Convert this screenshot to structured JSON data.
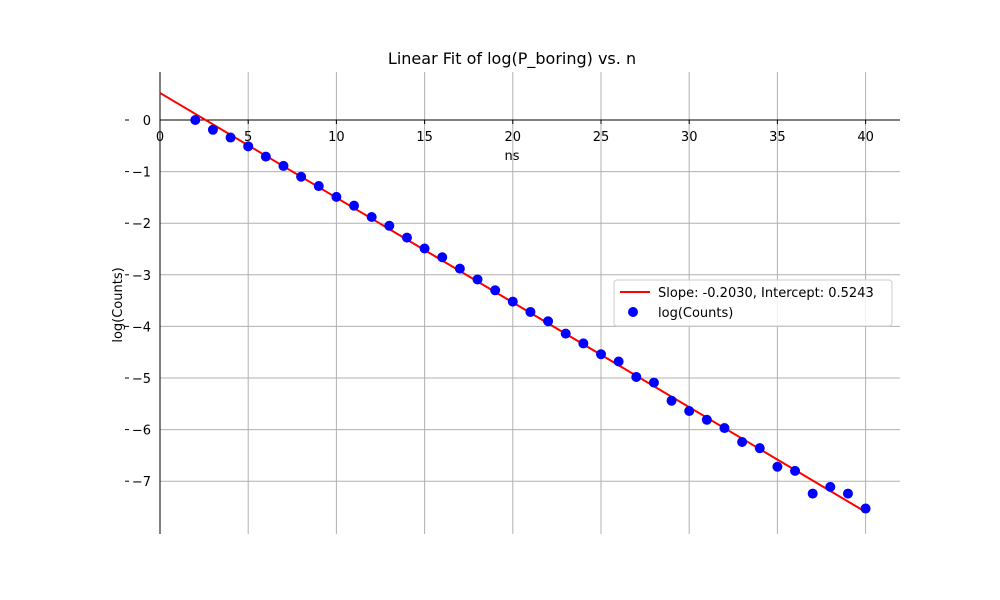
{
  "chart_data": {
    "type": "scatter",
    "title": "Linear Fit of log(P_boring) vs. n",
    "xlabel": "ns",
    "ylabel": "log(Counts)",
    "xlim": [
      0,
      42
    ],
    "ylim": [
      -7.9,
      0.9
    ],
    "xticks": [
      0,
      5,
      10,
      15,
      20,
      25,
      30,
      35,
      40
    ],
    "yticks": [
      0,
      -1,
      -2,
      -3,
      -4,
      -5,
      -6,
      -7
    ],
    "xtick_labels": [
      "0",
      "5",
      "10",
      "15",
      "20",
      "25",
      "30",
      "35",
      "40"
    ],
    "ytick_labels": [
      "0",
      "−1",
      "−2",
      "−3",
      "−4",
      "−5",
      "−6",
      "−7"
    ],
    "grid": true,
    "legend_position": "center-right",
    "series": [
      {
        "name": "Slope: -0.2030, Intercept: 0.5243",
        "kind": "line",
        "color": "#ff0000",
        "slope": -0.203,
        "intercept": 0.5243,
        "x": [
          0,
          40
        ]
      },
      {
        "name": "log(Counts)",
        "kind": "scatter",
        "color": "#0000ff",
        "x": [
          2,
          3,
          4,
          5,
          6,
          7,
          8,
          9,
          10,
          11,
          12,
          13,
          14,
          15,
          16,
          17,
          18,
          19,
          20,
          21,
          22,
          23,
          24,
          25,
          26,
          27,
          28,
          29,
          30,
          31,
          32,
          33,
          34,
          35,
          36,
          37,
          38,
          39,
          40
        ],
        "y": [
          0.0,
          -0.19,
          -0.34,
          -0.51,
          -0.71,
          -0.89,
          -1.1,
          -1.28,
          -1.49,
          -1.66,
          -1.88,
          -2.05,
          -2.28,
          -2.49,
          -2.66,
          -2.88,
          -3.09,
          -3.3,
          -3.52,
          -3.72,
          -3.9,
          -4.14,
          -4.33,
          -4.54,
          -4.68,
          -4.98,
          -5.09,
          -5.44,
          -5.64,
          -5.81,
          -5.97,
          -6.24,
          -6.36,
          -6.72,
          -6.8,
          -7.24,
          -7.11,
          -7.24,
          -7.53
        ]
      }
    ]
  }
}
